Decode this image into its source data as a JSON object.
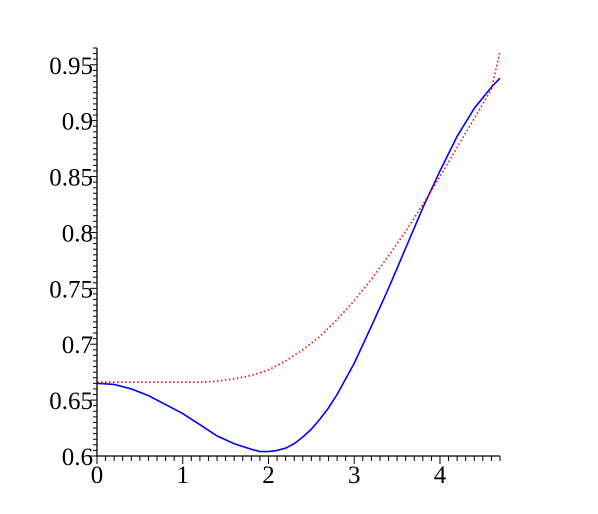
{
  "chart_data": {
    "type": "line",
    "title": "",
    "xlabel": "",
    "ylabel": "",
    "xlim": [
      0,
      4.7
    ],
    "ylim": [
      0.6,
      0.965
    ],
    "grid": false,
    "x_ticks": [
      {
        "value": 0,
        "label": "0"
      },
      {
        "value": 1,
        "label": "1"
      },
      {
        "value": 2,
        "label": "2"
      },
      {
        "value": 3,
        "label": "3"
      },
      {
        "value": 4,
        "label": "4"
      }
    ],
    "y_ticks": [
      {
        "value": 0.6,
        "label": "0.6"
      },
      {
        "value": 0.65,
        "label": "0.65"
      },
      {
        "value": 0.7,
        "label": "0.7"
      },
      {
        "value": 0.75,
        "label": "0.75"
      },
      {
        "value": 0.8,
        "label": "0.8"
      },
      {
        "value": 0.85,
        "label": "0.85"
      },
      {
        "value": 0.9,
        "label": "0.9"
      },
      {
        "value": 0.95,
        "label": "0.95"
      }
    ],
    "series": [
      {
        "color": "#0000ff",
        "style": "solid",
        "x": [
          0,
          0.2,
          0.4,
          0.6,
          0.8,
          1.0,
          1.2,
          1.4,
          1.6,
          1.8,
          1.9,
          2.0,
          2.1,
          2.2,
          2.3,
          2.4,
          2.5,
          2.6,
          2.7,
          2.8,
          2.9,
          3.0,
          3.2,
          3.4,
          3.6,
          3.8,
          4.0,
          4.2,
          4.4,
          4.6,
          4.7
        ],
        "y": [
          0.665,
          0.664,
          0.66,
          0.654,
          0.646,
          0.638,
          0.628,
          0.618,
          0.611,
          0.606,
          0.604,
          0.604,
          0.605,
          0.607,
          0.611,
          0.617,
          0.624,
          0.633,
          0.643,
          0.655,
          0.669,
          0.683,
          0.716,
          0.75,
          0.786,
          0.822,
          0.855,
          0.886,
          0.911,
          0.93,
          0.938
        ]
      },
      {
        "color": "#ff0000",
        "style": "dotted",
        "x": [
          0,
          0.4,
          0.8,
          1.2,
          1.4,
          1.6,
          1.8,
          2.0,
          2.2,
          2.4,
          2.6,
          2.8,
          3.0,
          3.2,
          3.4,
          3.6,
          3.8,
          4.0,
          4.2,
          4.4,
          4.6,
          4.7
        ],
        "y": [
          0.666,
          0.666,
          0.666,
          0.666,
          0.667,
          0.669,
          0.672,
          0.677,
          0.685,
          0.695,
          0.707,
          0.722,
          0.739,
          0.758,
          0.779,
          0.801,
          0.825,
          0.85,
          0.876,
          0.902,
          0.928,
          0.962
        ]
      }
    ]
  }
}
